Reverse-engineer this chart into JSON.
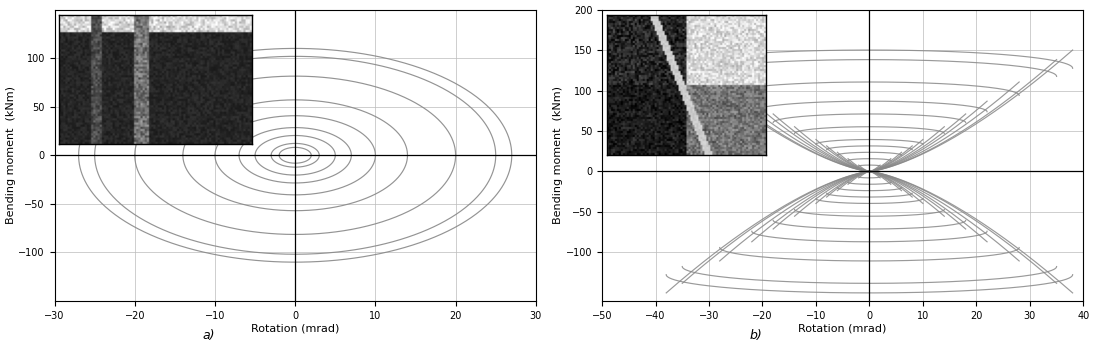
{
  "fig_width": 10.95,
  "fig_height": 3.44,
  "dpi": 100,
  "background_color": "#ffffff",
  "line_color": "#888888",
  "line_width": 0.85,
  "plot_a": {
    "xlim": [
      -30,
      30
    ],
    "ylim": [
      -150,
      150
    ],
    "xticks": [
      -30,
      -20,
      -10,
      0,
      10,
      20,
      30
    ],
    "yticks": [
      -100,
      -50,
      0,
      50,
      100
    ],
    "xlabel": "Rotation (mrad)",
    "ylabel": "Bending moment  (kNm)",
    "label": "a)",
    "max_moment": 110,
    "max_rot": 27,
    "cycles": [
      2,
      3,
      5,
      7,
      10,
      14,
      20,
      25,
      27
    ]
  },
  "plot_b": {
    "xlim": [
      -50,
      40
    ],
    "ylim": [
      -160,
      200
    ],
    "xticks": [
      -50,
      -40,
      -30,
      -20,
      -10,
      0,
      10,
      20,
      30,
      40
    ],
    "yticks": [
      -100,
      -50,
      0,
      50,
      100,
      150,
      200
    ],
    "xlabel": "Rotation (mrad)",
    "ylabel": "Bending moment  (kNm)",
    "label": "b)",
    "max_moment": 150,
    "max_rot": 38,
    "cycles": [
      2,
      4,
      6,
      8,
      10,
      14,
      18,
      22,
      28,
      35,
      38
    ]
  }
}
